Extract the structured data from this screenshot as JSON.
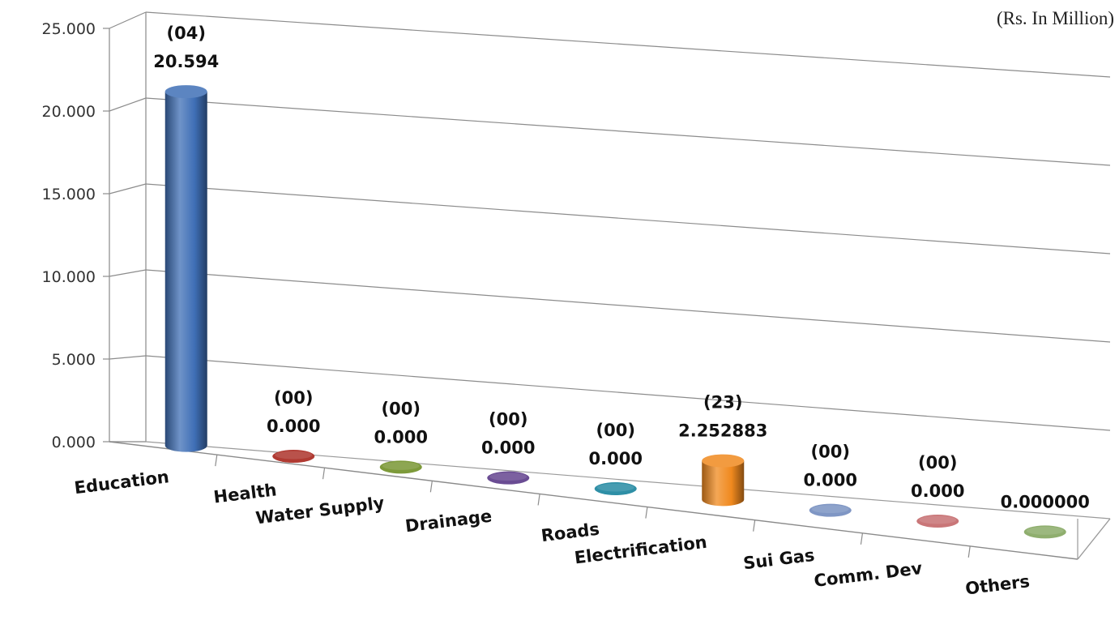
{
  "chart_data": {
    "type": "bar",
    "style": "3d-cylinder",
    "unit_note": "(Rs. In Million)",
    "categories": [
      "Education",
      "Health",
      "Water Supply",
      "Drainage",
      "Roads",
      "Electrification",
      "Sui Gas",
      "Comm. Dev",
      "Others"
    ],
    "values": [
      20.594,
      0.0,
      0.0,
      0.0,
      0.0,
      2.252883,
      0.0,
      0.0,
      0.0
    ],
    "counts": [
      "(04)",
      "(00)",
      "(00)",
      "(00)",
      "(00)",
      "(23)",
      "(00)",
      "(00)",
      ""
    ],
    "value_labels": [
      "20.594",
      "0.000",
      "0.000",
      "0.000",
      "0.000",
      "2.252883",
      "0.000",
      "0.000",
      "0.000000"
    ],
    "colors": [
      "#3f6fb6",
      "#b03a32",
      "#7d9a3a",
      "#6a4c93",
      "#2e8fa6",
      "#f0891e",
      "#7f96c4",
      "#c97678",
      "#8fae6e"
    ],
    "ylim": [
      0,
      25
    ],
    "yticks": [
      "0.000",
      "5.000",
      "10.000",
      "15.000",
      "20.000",
      "25.000"
    ],
    "xlabel": "",
    "ylabel": "",
    "grid": true
  }
}
